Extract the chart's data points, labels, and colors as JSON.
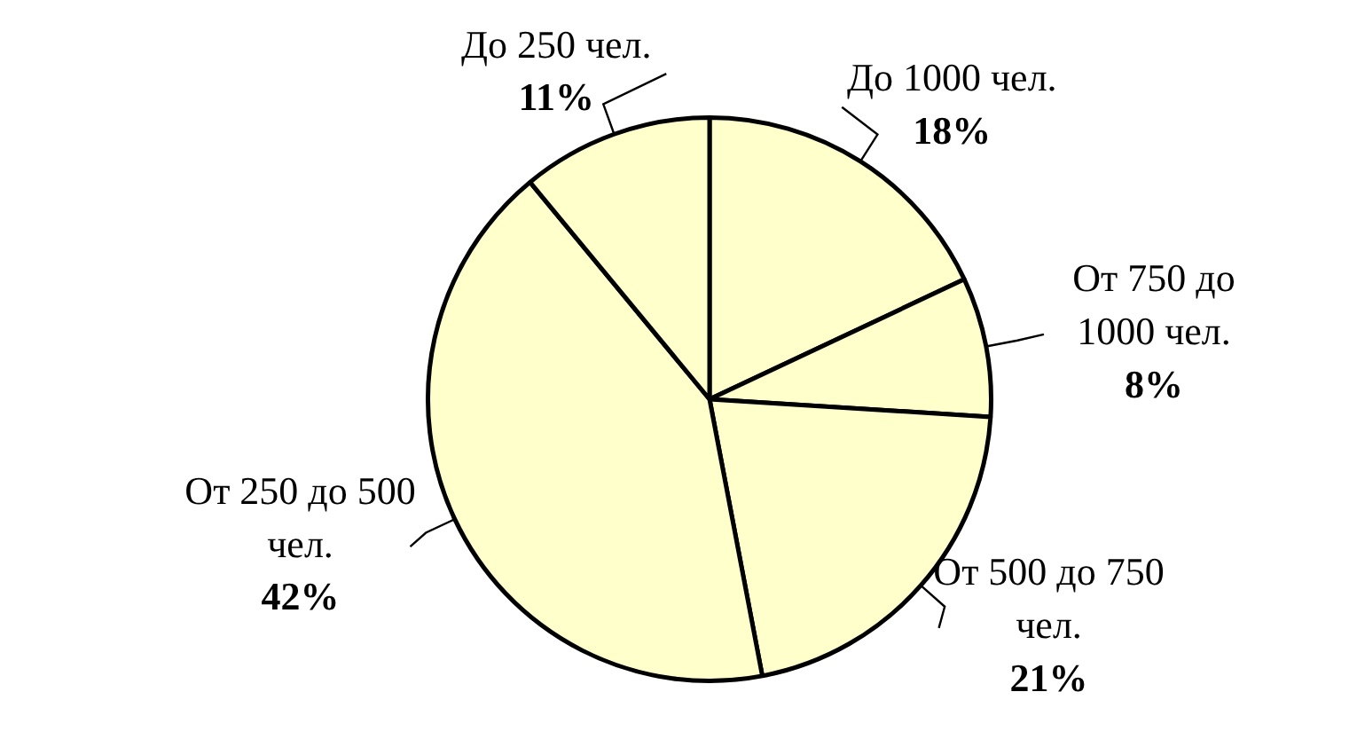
{
  "chart_data": {
    "type": "pie",
    "categories": [
      "До 1000 чел.",
      "От 750 до 1000 чел.",
      "От 500 до 750 чел.",
      "От 250 до 500 чел.",
      "До 250 чел."
    ],
    "values": [
      18,
      8,
      21,
      42,
      11
    ],
    "value_labels": [
      "18%",
      "8%",
      "21%",
      "42%",
      "11%"
    ],
    "colors": [
      "#ffffcc",
      "#ffffcc",
      "#ffffcc",
      "#ffffcc",
      "#ffffcc"
    ],
    "legend": false
  }
}
